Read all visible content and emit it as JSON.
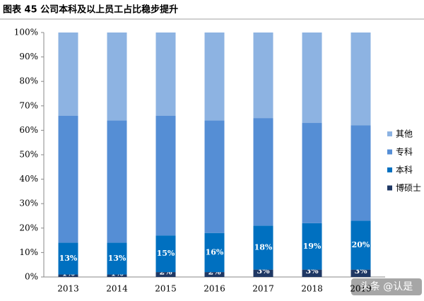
{
  "chart_data": {
    "type": "stacked_bar",
    "title": "图表 45 公司本科及以上员工占比稳步提升",
    "categories": [
      "2013",
      "2014",
      "2015",
      "2016",
      "2017",
      "2018",
      "2019"
    ],
    "series": [
      {
        "name": "博硕士",
        "color": "#1f3864",
        "values": [
          1,
          1,
          2,
          2,
          3,
          3,
          3
        ],
        "value_labels": [
          "1%",
          "1%",
          "2%",
          "2%",
          "3%",
          "3%",
          "3%"
        ]
      },
      {
        "name": "本科",
        "color": "#0070c0",
        "values": [
          13,
          13,
          15,
          16,
          18,
          19,
          20
        ],
        "value_labels": [
          "13%",
          "13%",
          "15%",
          "16%",
          "18%",
          "19%",
          "20%"
        ]
      },
      {
        "name": "专科",
        "color": "#558ed5",
        "values": [
          52,
          50,
          49,
          46,
          44,
          41,
          39
        ]
      },
      {
        "name": "其他",
        "color": "#8db3e2",
        "values": [
          34,
          36,
          34,
          36,
          35,
          37,
          38
        ]
      }
    ],
    "ylim": [
      0,
      100
    ],
    "yticks": [
      {
        "value": 0,
        "label": "0%"
      },
      {
        "value": 10,
        "label": "10%"
      },
      {
        "value": 20,
        "label": "20%"
      },
      {
        "value": 30,
        "label": "30%"
      },
      {
        "value": 40,
        "label": "40%"
      },
      {
        "value": 50,
        "label": "50%"
      },
      {
        "value": 60,
        "label": "60%"
      },
      {
        "value": 70,
        "label": "70%"
      },
      {
        "value": 80,
        "label": "80%"
      },
      {
        "value": 90,
        "label": "90%"
      },
      {
        "value": 100,
        "label": "100%"
      }
    ],
    "watermark": "头条 @认是"
  }
}
